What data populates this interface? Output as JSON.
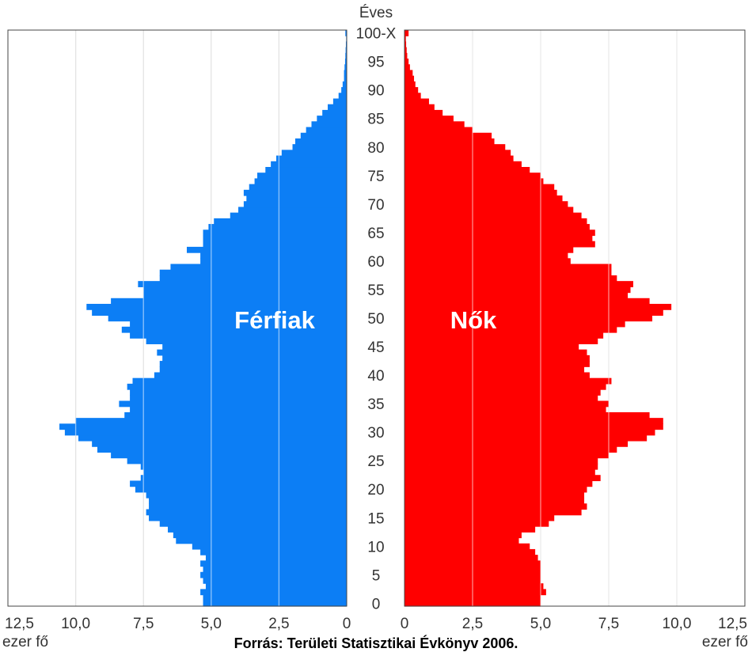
{
  "chart_data": {
    "type": "bar",
    "subtype": "population-pyramid",
    "orientation": "horizontal",
    "ages": [
      0,
      1,
      2,
      3,
      4,
      5,
      6,
      7,
      8,
      9,
      10,
      11,
      12,
      13,
      14,
      15,
      16,
      17,
      18,
      19,
      20,
      21,
      22,
      23,
      24,
      25,
      26,
      27,
      28,
      29,
      30,
      31,
      32,
      33,
      34,
      35,
      36,
      37,
      38,
      39,
      40,
      41,
      42,
      43,
      44,
      45,
      46,
      47,
      48,
      49,
      50,
      51,
      52,
      53,
      54,
      55,
      56,
      57,
      58,
      59,
      60,
      61,
      62,
      63,
      64,
      65,
      66,
      67,
      68,
      69,
      70,
      71,
      72,
      73,
      74,
      75,
      76,
      77,
      78,
      79,
      80,
      81,
      82,
      83,
      84,
      85,
      86,
      87,
      88,
      89,
      90,
      91,
      92,
      93,
      94,
      95,
      96,
      97,
      98,
      99,
      100
    ],
    "series": [
      {
        "name": "Férfiak",
        "side": "left",
        "values": [
          5.3,
          5.3,
          5.4,
          5.2,
          5.3,
          5.4,
          5.3,
          5.4,
          5.2,
          5.4,
          5.7,
          6.3,
          6.4,
          6.6,
          6.9,
          7.3,
          7.4,
          7.3,
          7.3,
          7.4,
          7.8,
          8.0,
          7.6,
          7.5,
          7.6,
          8.1,
          8.7,
          9.2,
          9.4,
          9.9,
          10.4,
          10.6,
          10.0,
          8.2,
          8.0,
          8.4,
          8.0,
          8.0,
          8.1,
          7.9,
          7.1,
          6.9,
          6.9,
          6.8,
          7.0,
          6.8,
          7.4,
          8.0,
          8.3,
          8.0,
          8.8,
          9.4,
          9.6,
          8.7,
          7.5,
          7.5,
          7.7,
          6.9,
          6.9,
          6.5,
          5.4,
          5.4,
          5.9,
          5.3,
          5.3,
          5.3,
          5.1,
          4.9,
          4.3,
          4.0,
          3.8,
          3.7,
          3.8,
          3.6,
          3.4,
          3.3,
          3.0,
          2.8,
          2.6,
          2.4,
          2.0,
          1.9,
          1.7,
          1.5,
          1.3,
          1.1,
          0.9,
          0.7,
          0.5,
          0.3,
          0.2,
          0.15,
          0.1,
          0.1,
          0.08,
          0.06,
          0.05,
          0.04,
          0.03,
          0.02,
          0.05
        ]
      },
      {
        "name": "Nők",
        "side": "right",
        "values": [
          5.0,
          5.0,
          5.2,
          5.1,
          5.0,
          5.0,
          5.0,
          5.0,
          4.9,
          4.8,
          4.6,
          4.2,
          4.3,
          4.8,
          5.3,
          5.5,
          6.5,
          6.7,
          6.6,
          6.6,
          6.7,
          6.9,
          7.2,
          7.0,
          7.1,
          7.1,
          7.5,
          7.8,
          8.2,
          8.9,
          9.2,
          9.5,
          9.5,
          9.0,
          7.4,
          7.5,
          7.1,
          7.2,
          7.4,
          7.6,
          6.8,
          6.6,
          6.8,
          6.8,
          6.7,
          6.4,
          7.1,
          7.3,
          7.8,
          8.1,
          9.1,
          9.5,
          9.8,
          9.0,
          8.2,
          8.3,
          8.4,
          7.8,
          7.6,
          7.6,
          6.1,
          6.0,
          6.2,
          7.0,
          6.9,
          7.0,
          6.8,
          6.7,
          6.5,
          6.2,
          6.0,
          5.8,
          5.6,
          5.5,
          5.1,
          5.0,
          4.6,
          4.3,
          4.0,
          3.9,
          3.7,
          3.3,
          3.2,
          2.5,
          2.2,
          1.8,
          1.4,
          1.1,
          0.9,
          0.6,
          0.5,
          0.4,
          0.35,
          0.3,
          0.2,
          0.15,
          0.1,
          0.08,
          0.06,
          0.05,
          0.15
        ]
      }
    ],
    "xlim": [
      0,
      12.5
    ],
    "xticks": [
      "0",
      "2,5",
      "5,0",
      "7,5",
      "10,0",
      "12,5"
    ],
    "xlabel": "ezer fő",
    "ylabel": "Éves",
    "yticks": [
      "0",
      "5",
      "10",
      "15",
      "20",
      "25",
      "30",
      "35",
      "40",
      "45",
      "50",
      "55",
      "60",
      "65",
      "70",
      "75",
      "80",
      "85",
      "90",
      "95",
      "100-X"
    ],
    "ylim": [
      0,
      100
    ],
    "colors": {
      "left": "#0c7ef5",
      "right": "#ff0000",
      "grid_left": "#c6c6c6",
      "grid_right": "#d8d8d8",
      "background": "#ffffff"
    },
    "grid": true,
    "source": "Forrás: Területi Statisztikai Évkönyv 2006."
  }
}
